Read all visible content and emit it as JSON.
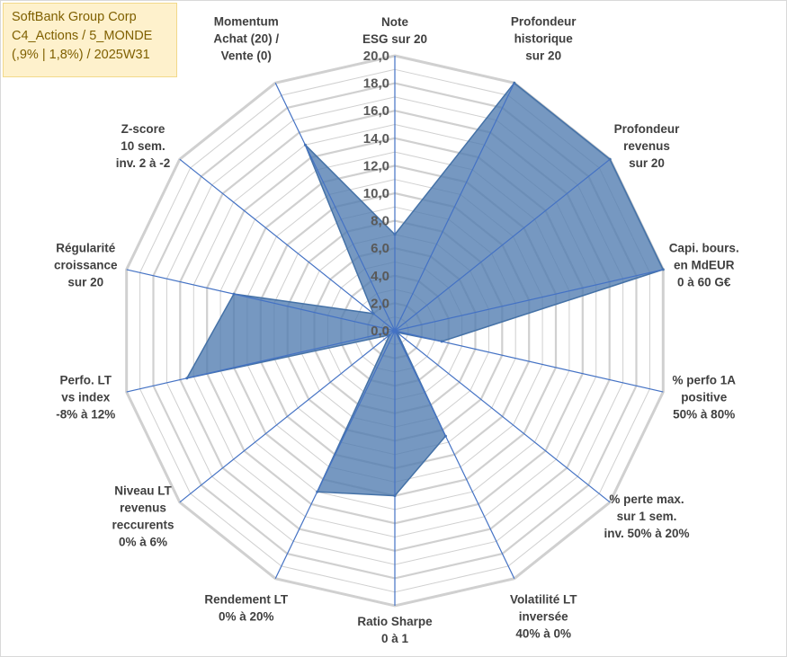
{
  "title_box": {
    "line1": "SoftBank Group Corp",
    "line2": "C4_Actions / 5_MONDE",
    "line3": "(,9% | 1,8%) / 2025W31"
  },
  "colors": {
    "area_fill": "#4f7bb0",
    "area_stroke": "#4572a7",
    "spoke": "#4472c4",
    "grid": "#d0d0d0",
    "title_bg": "#fef1cc",
    "title_text": "#7f6000"
  },
  "chart_data": {
    "type": "radar",
    "r_range": [
      0,
      20
    ],
    "r_ticks": [
      "0,0",
      "2,0",
      "4,0",
      "6,0",
      "8,0",
      "10,0",
      "12,0",
      "14,0",
      "16,0",
      "18,0",
      "20,0"
    ],
    "axes": [
      {
        "label": [
          "Note",
          "ESG sur 20"
        ]
      },
      {
        "label": [
          "Profondeur",
          "historique",
          "sur 20"
        ]
      },
      {
        "label": [
          "Profondeur",
          "revenus",
          "sur 20"
        ]
      },
      {
        "label": [
          "Capi. bours.",
          "en MdEUR",
          "0 à 60 G€"
        ]
      },
      {
        "label": [
          "% perfo 1A",
          "positive",
          "50% à 80%"
        ]
      },
      {
        "label": [
          "% perte max.",
          "sur 1 sem.",
          "inv. 50% à 20%"
        ]
      },
      {
        "label": [
          "Volatilité LT",
          "inversée",
          "40% à 0%"
        ]
      },
      {
        "label": [
          "Ratio Sharpe",
          "0 à 1"
        ]
      },
      {
        "label": [
          "Rendement LT",
          "0% à 20%"
        ]
      },
      {
        "label": [
          "Niveau LT",
          "revenus",
          "reccurents",
          "0% à 6%"
        ]
      },
      {
        "label": [
          "Perfo. LT",
          "vs index",
          "-8% à 12%"
        ]
      },
      {
        "label": [
          "Régularité",
          "croissance",
          "sur 20"
        ]
      },
      {
        "label": [
          "Z-score",
          "10 sem.",
          "inv. 2 à -2"
        ]
      },
      {
        "label": [
          "Momentum",
          "Achat (20) /",
          "Vente (0)"
        ]
      }
    ],
    "series": [
      {
        "values": [
          7.0,
          20.0,
          20.0,
          20.0,
          3.5,
          0.2,
          8.5,
          12.0,
          13.0,
          0.5,
          15.5,
          12.0,
          2.0,
          15.0
        ]
      }
    ],
    "grid": true,
    "legend": "none"
  }
}
